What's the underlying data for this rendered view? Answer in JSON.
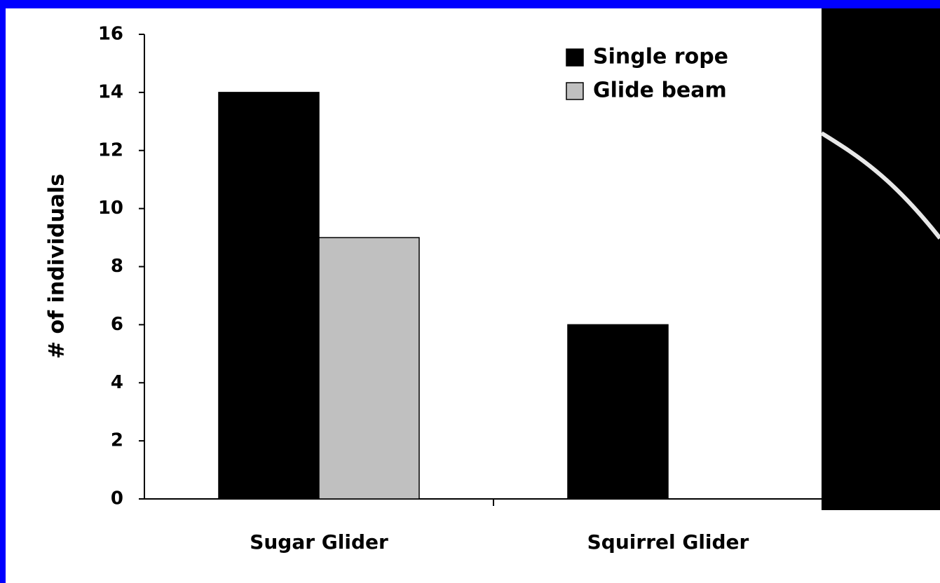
{
  "chart_data": {
    "type": "bar",
    "y_label": "# of individuals",
    "categories": [
      "Sugar Glider",
      "Squirrel Glider"
    ],
    "series": [
      {
        "name": "Single rope",
        "color": "#000000",
        "values": [
          14,
          6
        ]
      },
      {
        "name": "Glide beam",
        "color": "#c0c0c0",
        "values": [
          9,
          0
        ]
      }
    ],
    "ylim": [
      0,
      16
    ],
    "yticks": [
      0,
      2,
      4,
      6,
      8,
      10,
      12,
      14,
      16
    ],
    "legend": "upper right"
  }
}
